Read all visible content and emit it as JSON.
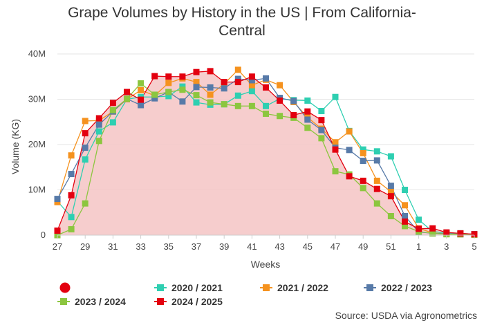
{
  "chart_data": {
    "type": "line",
    "title_line1": "Grape Volumes by History in the US | From California-",
    "title_line2": "Central",
    "xlabel": "Weeks",
    "ylabel": "Volume (KG)",
    "ylim": [
      0,
      40000000
    ],
    "y_ticks": [
      {
        "value": 0,
        "label": "0"
      },
      {
        "value": 10000000,
        "label": "10M"
      },
      {
        "value": 20000000,
        "label": "20M"
      },
      {
        "value": 30000000,
        "label": "30M"
      },
      {
        "value": 40000000,
        "label": "40M"
      }
    ],
    "weeks": [
      27,
      28,
      29,
      30,
      31,
      32,
      33,
      34,
      35,
      36,
      37,
      38,
      39,
      40,
      41,
      42,
      43,
      44,
      45,
      46,
      47,
      48,
      49,
      50,
      51,
      52,
      1,
      2,
      3,
      4,
      5
    ],
    "x_tick_labels": [
      "27",
      "29",
      "31",
      "33",
      "35",
      "37",
      "39",
      "41",
      "43",
      "45",
      "47",
      "49",
      "51",
      "1",
      "3",
      "5"
    ],
    "area_series": "2024 / 2025",
    "area_color": "#f5c4c4",
    "series": [
      {
        "name": "2020 / 2021",
        "color": "#2ecfb1",
        "values": [
          7.5,
          4,
          16.7,
          22.9,
          24.9,
          30,
          30.5,
          30.5,
          30.7,
          32.8,
          29.3,
          28.8,
          28.9,
          30.8,
          31.8,
          28.5,
          30.1,
          29.8,
          29.7,
          27.4,
          30.5,
          23,
          18.9,
          18.5,
          17.4,
          10,
          3.4,
          0.8,
          0.5,
          0.4,
          0.2
        ]
      },
      {
        "name": "2021 / 2022",
        "color": "#f5921e",
        "values": [
          7.3,
          17.6,
          25.2,
          25.3,
          27.3,
          30,
          32,
          30.8,
          33.6,
          34.6,
          33.8,
          31,
          33.4,
          36.5,
          33.1,
          34.3,
          33.1,
          29.4,
          26,
          23.5,
          20.5,
          22.9,
          18.1,
          12,
          9.6,
          6.6,
          1.5,
          0.5,
          0.3,
          0.2,
          0.1
        ]
      },
      {
        "name": "2022 / 2023",
        "color": "#577aa8",
        "values": [
          8,
          13.5,
          19.3,
          24.4,
          27.3,
          30.1,
          28.7,
          30.2,
          31.6,
          29.5,
          32.7,
          32.6,
          32.4,
          34.5,
          34.2,
          34.6,
          30.3,
          29.6,
          25.5,
          23.2,
          19.3,
          18.8,
          16.4,
          16.5,
          10.9,
          4.2,
          0.7,
          0.4,
          0.3,
          0.2,
          0.2
        ]
      },
      {
        "name": "2023 / 2024",
        "color": "#8cc63f",
        "values": [
          0,
          1.3,
          7,
          20.8,
          27.6,
          30.1,
          33.5,
          31,
          31.6,
          32.1,
          30.9,
          29.3,
          28.9,
          28.5,
          28.5,
          26.8,
          26.3,
          25.9,
          23.7,
          21.4,
          14.1,
          13.4,
          10.4,
          7,
          4.2,
          2,
          0.8,
          0.4,
          0.2,
          0.2,
          0.1
        ]
      },
      {
        "name": "2024 / 2025",
        "color": "#e3000f",
        "values": [
          1,
          8.8,
          22.5,
          25.8,
          29.2,
          31.6,
          29.9,
          35.1,
          35,
          35,
          36,
          36.2,
          33.8,
          33.8,
          35,
          32.6,
          29.7,
          26.5,
          27.3,
          25.4,
          18.9,
          13,
          12,
          10.2,
          8.6,
          3,
          1.4,
          1.5,
          0.6,
          0.4,
          0.2
        ]
      }
    ]
  },
  "legend": {
    "items": [
      {
        "name": "2020 / 2021",
        "color": "#2ecfb1"
      },
      {
        "name": "2021 / 2022",
        "color": "#f5921e"
      },
      {
        "name": "2022 / 2023",
        "color": "#577aa8"
      },
      {
        "name": "2023 / 2024",
        "color": "#8cc63f"
      },
      {
        "name": "2024 / 2025",
        "color": "#e3000f"
      }
    ],
    "marker_color": "#e3000f"
  },
  "source": "Source: USDA via Agronometrics"
}
